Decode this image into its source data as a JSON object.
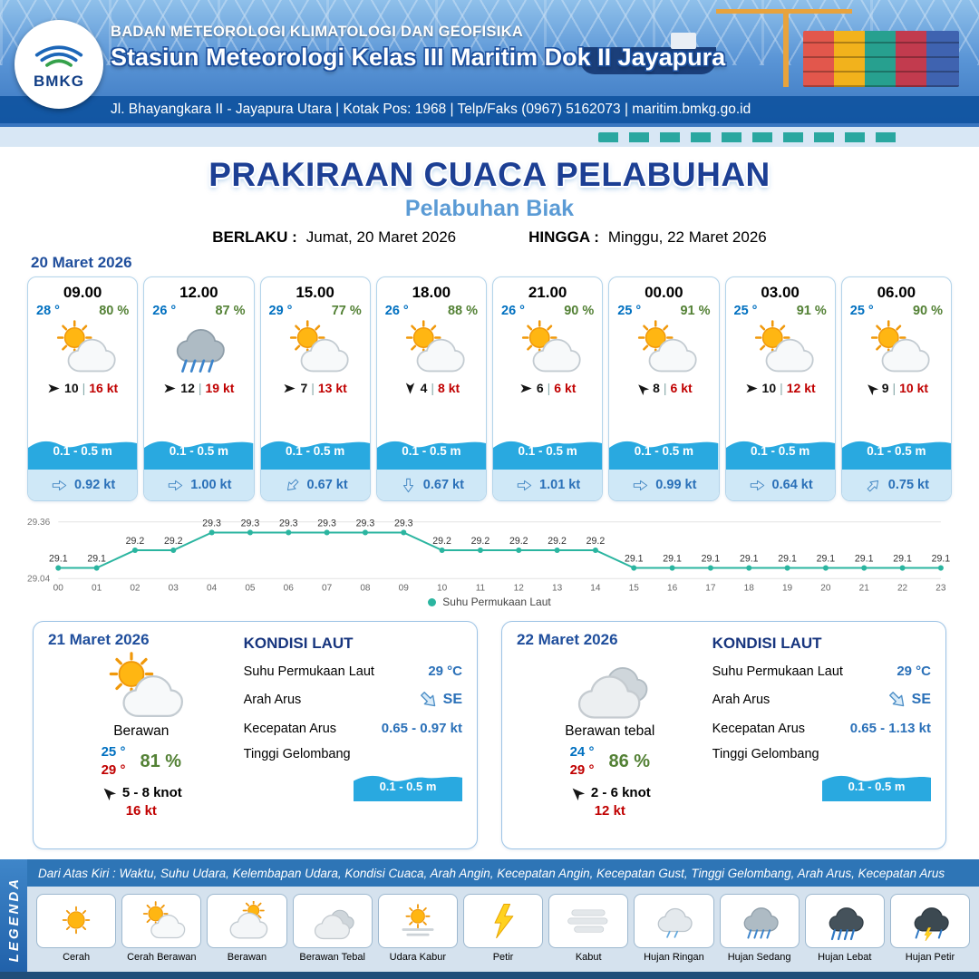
{
  "header": {
    "logo_text": "BMKG",
    "agency": "BADAN METEOROLOGI KLIMATOLOGI DAN GEOFISIKA",
    "station": "Stasiun Meteorologi Kelas III Maritim Dok II Jayapura",
    "address": "Jl. Bhayangkara II - Jayapura Utara | Kotak Pos: 1968 | Telp/Faks (0967) 5162073 | maritim.bmkg.go.id"
  },
  "title": {
    "main": "PRAKIRAAN CUACA PELABUHAN",
    "port": "Pelabuhan Biak",
    "berlaku_label": "BERLAKU :",
    "berlaku_value": "Jumat, 20 Maret 2026",
    "hingga_label": "HINGGA :",
    "hingga_value": "Minggu, 22 Maret 2026"
  },
  "day1": {
    "date": "20 Maret 2026",
    "cards": [
      {
        "time": "09.00",
        "temp": "28 °",
        "rh": "80 %",
        "icon": "cerah-berawan",
        "wind_deg": 0,
        "wind": "10",
        "gust": "16 kt",
        "wave": "0.1 - 0.5 m",
        "cur_deg": 0,
        "cur": "0.92 kt"
      },
      {
        "time": "12.00",
        "temp": "26 °",
        "rh": "87 %",
        "icon": "hujan-sedang",
        "wind_deg": 0,
        "wind": "12",
        "gust": "19 kt",
        "wave": "0.1 - 0.5 m",
        "cur_deg": 0,
        "cur": "1.00 kt"
      },
      {
        "time": "15.00",
        "temp": "29 °",
        "rh": "77 %",
        "icon": "cerah-berawan",
        "wind_deg": 0,
        "wind": "7",
        "gust": "13 kt",
        "wave": "0.1 - 0.5 m",
        "cur_deg": 135,
        "cur": "0.67 kt"
      },
      {
        "time": "18.00",
        "temp": "26 °",
        "rh": "88 %",
        "icon": "cerah-berawan",
        "wind_deg": 90,
        "wind": "4",
        "gust": "8 kt",
        "wave": "0.1 - 0.5 m",
        "cur_deg": 90,
        "cur": "0.67 kt"
      },
      {
        "time": "21.00",
        "temp": "26 °",
        "rh": "90 %",
        "icon": "cerah-berawan",
        "wind_deg": 0,
        "wind": "6",
        "gust": "6 kt",
        "wave": "0.1 - 0.5 m",
        "cur_deg": 0,
        "cur": "1.01 kt"
      },
      {
        "time": "00.00",
        "temp": "25 °",
        "rh": "91 %",
        "icon": "cerah-berawan",
        "wind_deg": 225,
        "wind": "8",
        "gust": "6 kt",
        "wave": "0.1 - 0.5 m",
        "cur_deg": 0,
        "cur": "0.99 kt"
      },
      {
        "time": "03.00",
        "temp": "25 °",
        "rh": "91 %",
        "icon": "cerah-berawan",
        "wind_deg": 0,
        "wind": "10",
        "gust": "12 kt",
        "wave": "0.1 - 0.5 m",
        "cur_deg": 0,
        "cur": "0.64 kt"
      },
      {
        "time": "06.00",
        "temp": "25 °",
        "rh": "90 %",
        "icon": "cerah-berawan",
        "wind_deg": 225,
        "wind": "9",
        "gust": "10 kt",
        "wave": "0.1 - 0.5 m",
        "cur_deg": -45,
        "cur": "0.75 kt"
      }
    ]
  },
  "chart_data": {
    "type": "line",
    "title": "",
    "x": [
      "00",
      "01",
      "02",
      "03",
      "04",
      "05",
      "06",
      "07",
      "08",
      "09",
      "10",
      "11",
      "12",
      "13",
      "14",
      "15",
      "16",
      "17",
      "18",
      "19",
      "20",
      "21",
      "22",
      "23"
    ],
    "values": [
      29.1,
      29.1,
      29.2,
      29.2,
      29.3,
      29.3,
      29.3,
      29.3,
      29.3,
      29.3,
      29.2,
      29.2,
      29.2,
      29.2,
      29.2,
      29.1,
      29.1,
      29.1,
      29.1,
      29.1,
      29.1,
      29.1,
      29.1,
      29.1
    ],
    "ylim": [
      29.04,
      29.36
    ],
    "xlabel": "",
    "ylabel": "",
    "legend": "Suhu Permukaan Laut",
    "legend_position": "bottom",
    "grid": true,
    "color": "#2bb5a0"
  },
  "days": [
    {
      "date": "21 Maret 2026",
      "icon": "cerah-berawan",
      "cond": "Berawan",
      "tmin": "25 °",
      "tmax": "29 °",
      "rh": "81 %",
      "wind_deg": 225,
      "wind": "5 - 8 knot",
      "gust": "16 kt",
      "sea_title": "KONDISI LAUT",
      "sst_label": "Suhu Permukaan Laut",
      "sst": "29 °C",
      "dir_label": "Arah Arus",
      "dir": "SE",
      "dir_deg": 45,
      "speed_label": "Kecepatan Arus",
      "speed": "0.65 - 0.97 kt",
      "wave_label": "Tinggi Gelombang",
      "wave": "0.1 - 0.5 m"
    },
    {
      "date": "22 Maret 2026",
      "icon": "berawan-tebal",
      "cond": "Berawan tebal",
      "tmin": "24 °",
      "tmax": "29 °",
      "rh": "86 %",
      "wind_deg": 225,
      "wind": "2 - 6 knot",
      "gust": "12 kt",
      "sea_title": "KONDISI LAUT",
      "sst_label": "Suhu Permukaan Laut",
      "sst": "29 °C",
      "dir_label": "Arah Arus",
      "dir": "SE",
      "dir_deg": 45,
      "speed_label": "Kecepatan Arus",
      "speed": "0.65 - 1.13 kt",
      "wave_label": "Tinggi Gelombang",
      "wave": "0.1 - 0.5 m"
    }
  ],
  "legend": {
    "title": "LEGENDA",
    "strip": "Dari Atas Kiri : Waktu, Suhu Udara, Kelembapan Udara, Kondisi Cuaca, Arah Angin, Kecepatan Angin, Kecepatan Gust, Tinggi Gelombang, Arah Arus, Kecepatan Arus",
    "items": [
      {
        "label": "Cerah",
        "icon": "cerah"
      },
      {
        "label": "Cerah Berawan",
        "icon": "cerah-berawan"
      },
      {
        "label": "Berawan",
        "icon": "berawan"
      },
      {
        "label": "Berawan Tebal",
        "icon": "berawan-tebal"
      },
      {
        "label": "Udara Kabur",
        "icon": "udara-kabur"
      },
      {
        "label": "Petir",
        "icon": "petir"
      },
      {
        "label": "Kabut",
        "icon": "kabut"
      },
      {
        "label": "Hujan Ringan",
        "icon": "hujan-ringan"
      },
      {
        "label": "Hujan Sedang",
        "icon": "hujan-sedang"
      },
      {
        "label": "Hujan Lebat",
        "icon": "hujan-lebat"
      },
      {
        "label": "Hujan Petir",
        "icon": "hujan-petir"
      }
    ]
  }
}
